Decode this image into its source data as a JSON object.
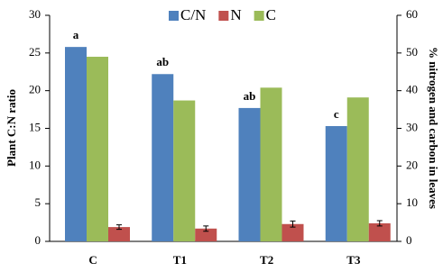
{
  "chart_data": {
    "type": "bar",
    "categories": [
      "C",
      "T1",
      "T2",
      "T3"
    ],
    "ylabel": "Plant C:N ratio",
    "y2label": "% nitrogen and carbon in leaves",
    "ylim": [
      0,
      30
    ],
    "yticks": [
      0,
      5,
      10,
      15,
      20,
      25,
      30
    ],
    "y2lim": [
      0,
      60
    ],
    "y2ticks": [
      0,
      10,
      20,
      30,
      40,
      50,
      60
    ],
    "legend": "top",
    "annotations": [
      "a",
      "ab",
      "ab",
      "c"
    ],
    "series": [
      {
        "name": "C/N",
        "color": "#4f81bd",
        "values": [
          25.8,
          22.2,
          17.7,
          15.3
        ]
      },
      {
        "name": "N",
        "color": "#c0504d",
        "axis": "y2",
        "values": [
          3.8,
          3.4,
          4.6,
          4.8
        ],
        "errors": [
          0.6,
          0.7,
          0.8,
          0.7
        ]
      },
      {
        "name": "C",
        "color": "#9bbb59",
        "axis": "y2",
        "values": [
          49,
          37.4,
          40.8,
          38.2
        ]
      }
    ]
  }
}
